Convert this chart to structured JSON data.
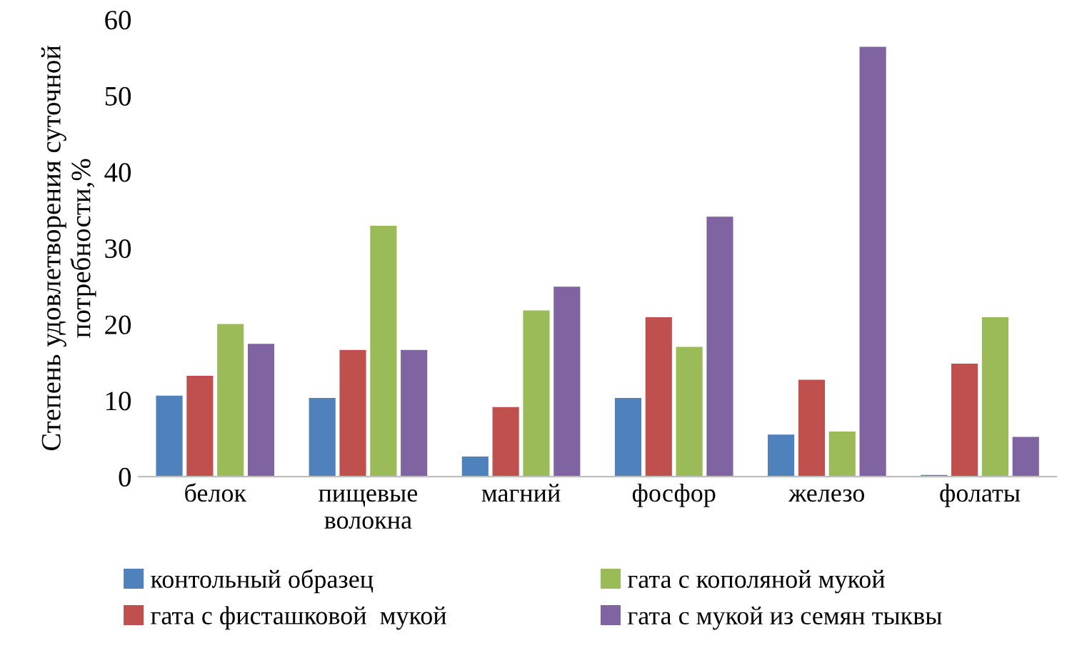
{
  "chart_data": {
    "type": "bar",
    "ylabel": "Степень удовлетворения суточной\nпотребности,%",
    "categories": [
      "белок",
      "пищевые\nволокна",
      "магний",
      "фосфор",
      "железо",
      "фолаты"
    ],
    "series": [
      {
        "name": "контольный образец",
        "color": "#4f81bd",
        "values": [
          10.7,
          10.4,
          2.7,
          10.4,
          5.6,
          0.3
        ]
      },
      {
        "name": "гата с фисташковой  мукой",
        "color": "#c0504d",
        "values": [
          13.3,
          16.7,
          9.2,
          21.0,
          12.8,
          14.9
        ]
      },
      {
        "name": "гата с кополяной мукой",
        "color": "#9bbb59",
        "values": [
          20.1,
          33.0,
          21.9,
          17.1,
          6.0,
          21.0
        ]
      },
      {
        "name": "гата с мукой из семян тыквы",
        "color": "#8064a2",
        "values": [
          17.5,
          16.7,
          25.0,
          34.2,
          56.5,
          5.3
        ]
      }
    ],
    "ylim": [
      0,
      60
    ],
    "yticks": [
      0,
      10,
      20,
      30,
      40,
      50,
      60
    ],
    "grid": false,
    "legend": "bottom"
  }
}
